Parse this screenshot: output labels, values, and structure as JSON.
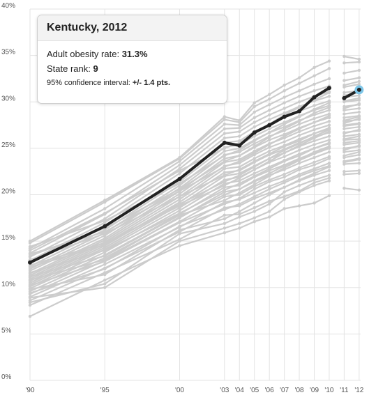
{
  "tooltip": {
    "title": "Kentucky, 2012",
    "rate_label": "Adult obesity rate:",
    "rate_value": "31.3%",
    "rank_label": "State rank:",
    "rank_value": "9",
    "ci_label": "95% confidence interval:",
    "ci_value": "+/- 1.4 pts."
  },
  "colors": {
    "highlight": "#222222",
    "background_lines": "#cccccc",
    "grid": "#e3e3e3",
    "marker": "#7ec6e8"
  },
  "chart_data": {
    "type": "line",
    "title": "",
    "xlabel": "",
    "ylabel": "",
    "x": [
      1990,
      1995,
      2000,
      2003,
      2004,
      2005,
      2006,
      2007,
      2008,
      2009,
      2010,
      2011,
      2012
    ],
    "x_tick_labels": [
      "'90",
      "'95",
      "'00",
      "'03",
      "'04",
      "'05",
      "'06",
      "'07",
      "'08",
      "'09",
      "'10",
      "'11",
      "'12"
    ],
    "y_tick_values": [
      0,
      5,
      10,
      15,
      20,
      25,
      30,
      35,
      40
    ],
    "y_tick_labels": [
      "0%",
      "5%",
      "10%",
      "15%",
      "20%",
      "25%",
      "30%",
      "35%",
      "40%"
    ],
    "ylim": [
      0,
      40
    ],
    "grid": true,
    "series_break_after": 2010,
    "highlight_series": {
      "name": "Kentucky",
      "values": [
        12.7,
        16.6,
        21.7,
        25.6,
        25.3,
        26.7,
        27.5,
        28.4,
        29.0,
        30.5,
        31.5,
        30.4,
        31.3
      ]
    },
    "highlight_point": {
      "x": 2012,
      "y": 31.3
    },
    "series": [
      {
        "values": [
          6.9,
          10.8,
          14.5,
          15.9,
          16.4,
          17.1,
          17.6,
          18.5,
          18.8,
          19.1,
          19.9,
          20.7,
          20.5
        ]
      },
      {
        "values": [
          8.1,
          11.6,
          15.2,
          17.8,
          17.9,
          18.6,
          19.3,
          19.8,
          20.4,
          21.3,
          21.8,
          22.5,
          22.6
        ]
      },
      {
        "values": [
          8.6,
          12.1,
          16.0,
          18.6,
          18.8,
          19.6,
          20.2,
          20.8,
          21.5,
          22.1,
          22.6,
          23.3,
          23.4
        ]
      },
      {
        "values": [
          9.0,
          12.5,
          16.5,
          19.2,
          19.5,
          20.2,
          20.9,
          21.5,
          22.2,
          22.8,
          23.4,
          24.0,
          24.3
        ]
      },
      {
        "values": [
          9.3,
          12.9,
          17.1,
          19.8,
          20.0,
          20.9,
          21.6,
          22.2,
          22.9,
          23.5,
          24.1,
          24.6,
          24.8
        ]
      },
      {
        "values": [
          9.6,
          13.2,
          17.5,
          20.3,
          20.6,
          21.4,
          22.1,
          22.7,
          23.4,
          24.0,
          24.6,
          25.0,
          25.2
        ]
      },
      {
        "values": [
          9.9,
          13.5,
          17.9,
          20.8,
          21.0,
          21.9,
          22.6,
          23.2,
          23.9,
          24.5,
          25.1,
          25.4,
          25.6
        ]
      },
      {
        "values": [
          10.1,
          13.8,
          18.3,
          21.2,
          21.5,
          22.3,
          23.0,
          23.7,
          24.4,
          25.0,
          25.5,
          25.9,
          26.0
        ]
      },
      {
        "values": [
          10.3,
          14.1,
          18.6,
          21.6,
          21.9,
          22.7,
          23.5,
          24.1,
          24.8,
          25.4,
          25.9,
          26.3,
          26.5
        ]
      },
      {
        "values": [
          10.5,
          14.3,
          18.9,
          22.0,
          22.3,
          23.1,
          23.9,
          24.5,
          25.2,
          25.8,
          26.3,
          26.7,
          26.9
        ]
      },
      {
        "values": [
          10.7,
          14.5,
          19.2,
          22.4,
          22.6,
          23.5,
          24.3,
          24.9,
          25.6,
          26.2,
          26.7,
          27.1,
          27.3
        ]
      },
      {
        "values": [
          10.9,
          14.7,
          19.5,
          22.8,
          23.0,
          23.9,
          24.7,
          25.3,
          26.0,
          26.6,
          27.1,
          27.5,
          27.7
        ]
      },
      {
        "values": [
          11.1,
          14.9,
          19.8,
          23.1,
          23.4,
          24.3,
          25.1,
          25.7,
          26.4,
          27.0,
          27.5,
          27.9,
          28.1
        ]
      },
      {
        "values": [
          11.3,
          15.1,
          20.1,
          23.5,
          23.8,
          24.7,
          25.5,
          26.1,
          26.8,
          27.4,
          27.9,
          28.3,
          28.5
        ]
      },
      {
        "values": [
          11.5,
          15.3,
          20.4,
          23.9,
          24.2,
          25.1,
          25.9,
          26.5,
          27.2,
          27.8,
          28.3,
          28.7,
          28.9
        ]
      },
      {
        "values": [
          11.8,
          15.6,
          20.7,
          24.3,
          24.6,
          25.5,
          26.3,
          26.9,
          27.6,
          28.2,
          28.7,
          29.1,
          29.3
        ]
      },
      {
        "values": [
          12.0,
          15.9,
          21.0,
          24.7,
          25.0,
          25.9,
          26.7,
          27.3,
          28.0,
          28.6,
          29.1,
          29.5,
          29.7
        ]
      },
      {
        "values": [
          12.3,
          16.2,
          21.4,
          25.1,
          25.4,
          26.3,
          27.1,
          27.8,
          28.5,
          29.1,
          29.6,
          30.0,
          30.2
        ]
      },
      {
        "values": [
          12.6,
          16.6,
          21.8,
          25.6,
          25.8,
          26.8,
          27.6,
          28.3,
          29.0,
          29.6,
          30.1,
          30.5,
          30.7
        ]
      },
      {
        "values": [
          12.9,
          17.0,
          22.3,
          26.1,
          26.3,
          27.3,
          28.1,
          28.8,
          29.5,
          30.1,
          30.6,
          31.0,
          31.2
        ]
      },
      {
        "values": [
          13.3,
          17.4,
          22.8,
          26.6,
          26.8,
          27.8,
          28.6,
          29.3,
          30.0,
          30.6,
          31.1,
          31.6,
          31.9
        ]
      },
      {
        "values": [
          13.7,
          17.9,
          23.2,
          27.1,
          27.2,
          28.3,
          29.1,
          29.9,
          30.6,
          31.2,
          31.7,
          32.3,
          32.6
        ]
      },
      {
        "values": [
          14.2,
          18.5,
          23.6,
          27.6,
          27.5,
          28.9,
          29.7,
          30.5,
          31.2,
          31.9,
          32.5,
          33.1,
          33.4
        ]
      },
      {
        "values": [
          14.8,
          19.2,
          23.9,
          28.1,
          27.8,
          29.5,
          30.3,
          31.2,
          32.0,
          32.8,
          33.6,
          34.2,
          34.3
        ]
      },
      {
        "values": [
          15.0,
          19.4,
          24.0,
          28.4,
          28.0,
          29.9,
          30.8,
          31.8,
          32.6,
          33.7,
          34.4,
          34.9,
          34.6
        ]
      },
      {
        "values": [
          8.4,
          10.4,
          15.8,
          16.9,
          17.6,
          18.2,
          19.0,
          20.3,
          21.0,
          21.6,
          22.1,
          23.6,
          23.9
        ]
      },
      {
        "values": [
          10.2,
          12.8,
          17.0,
          19.0,
          19.6,
          20.6,
          21.4,
          21.9,
          22.7,
          23.2,
          23.9,
          24.8,
          25.3
        ]
      },
      {
        "values": [
          11.6,
          14.0,
          18.0,
          20.5,
          21.2,
          22.0,
          22.8,
          23.6,
          24.2,
          25.0,
          25.6,
          26.6,
          27.0
        ]
      },
      {
        "values": [
          13.0,
          15.8,
          19.8,
          22.1,
          22.7,
          23.6,
          24.4,
          25.2,
          25.8,
          26.6,
          27.2,
          28.0,
          28.4
        ]
      },
      {
        "values": [
          9.4,
          12.0,
          16.6,
          18.4,
          19.0,
          19.8,
          20.6,
          21.3,
          22.0,
          22.6,
          23.1,
          24.2,
          24.6
        ]
      },
      {
        "values": [
          10.8,
          13.0,
          17.6,
          20.0,
          20.6,
          21.5,
          22.3,
          23.1,
          23.8,
          24.6,
          25.2,
          26.0,
          26.3
        ]
      },
      {
        "values": [
          12.2,
          14.6,
          19.0,
          21.4,
          22.1,
          23.0,
          23.9,
          24.8,
          25.5,
          26.3,
          27.0,
          27.7,
          28.2
        ]
      },
      {
        "values": [
          13.6,
          16.0,
          20.4,
          23.0,
          23.6,
          24.5,
          25.4,
          26.3,
          27.1,
          27.8,
          28.5,
          29.3,
          29.8
        ]
      },
      {
        "values": [
          14.4,
          17.2,
          21.2,
          24.2,
          24.8,
          25.8,
          26.7,
          27.6,
          28.4,
          29.2,
          29.9,
          30.7,
          31.0
        ]
      },
      {
        "values": [
          9.8,
          11.4,
          16.2,
          17.4,
          18.2,
          19.1,
          20.0,
          20.8,
          21.6,
          22.3,
          23.0,
          23.5,
          23.8
        ]
      },
      {
        "values": [
          11.2,
          13.4,
          17.8,
          19.4,
          20.2,
          21.1,
          22.0,
          22.9,
          23.7,
          24.4,
          25.0,
          25.6,
          25.8
        ]
      },
      {
        "values": [
          12.4,
          14.8,
          18.8,
          21.0,
          21.8,
          22.7,
          23.6,
          24.5,
          25.3,
          26.1,
          26.8,
          27.4,
          27.6
        ]
      },
      {
        "values": [
          13.4,
          16.4,
          20.6,
          23.6,
          24.2,
          25.2,
          26.2,
          27.1,
          27.9,
          28.8,
          29.4,
          30.1,
          30.4
        ]
      },
      {
        "values": [
          14.0,
          18.0,
          22.6,
          25.0,
          25.6,
          26.6,
          27.6,
          28.6,
          29.4,
          30.2,
          31.0,
          31.8,
          32.2
        ]
      },
      {
        "values": [
          8.9,
          10.0,
          15.0,
          16.4,
          16.9,
          17.5,
          18.2,
          19.5,
          20.3,
          21.0,
          21.5,
          22.2,
          22.3
        ]
      }
    ]
  }
}
